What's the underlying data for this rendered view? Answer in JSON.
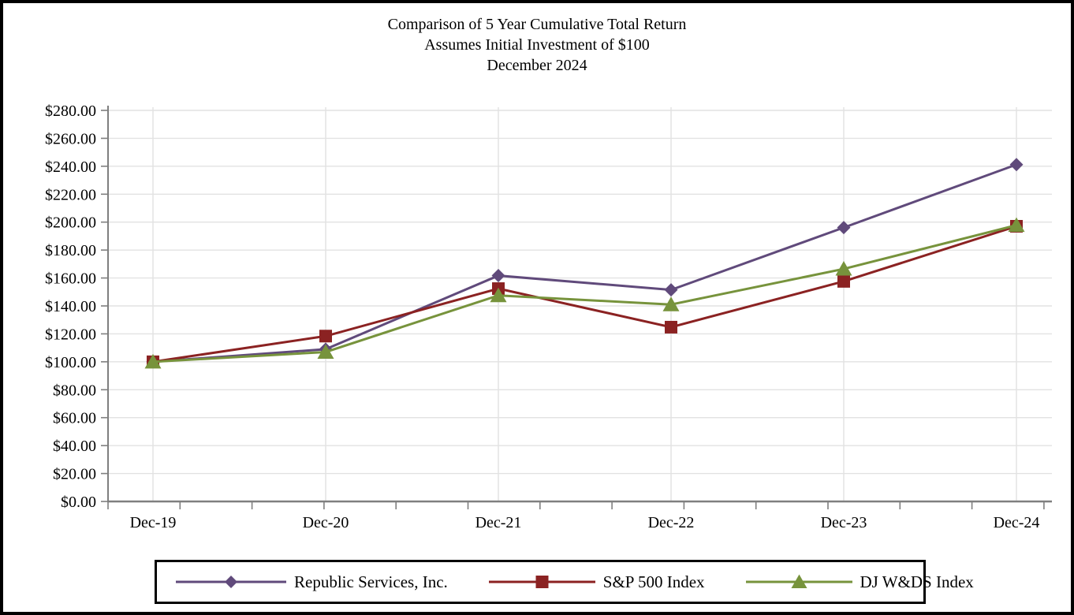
{
  "chart_data": {
    "type": "line",
    "title": "Comparison of 5 Year Cumulative Total Return",
    "subtitle1": "Assumes Initial Investment of $100",
    "subtitle2": "December 2024",
    "categories": [
      "Dec-19",
      "Dec-20",
      "Dec-21",
      "Dec-22",
      "Dec-23",
      "Dec-24"
    ],
    "series": [
      {
        "name": "Republic Services, Inc.",
        "marker": "diamond",
        "color": "#604a7b",
        "values": [
          100.0,
          109.0,
          161.7,
          151.5,
          196.1,
          241.2
        ]
      },
      {
        "name": "S&P 500 Index",
        "marker": "square",
        "color": "#8b2222",
        "values": [
          100.0,
          118.4,
          152.39,
          124.79,
          157.59,
          197.02
        ]
      },
      {
        "name": "DJ W&DS Index",
        "marker": "triangle",
        "color": "#77933c",
        "values": [
          100.0,
          107.0,
          147.5,
          141.0,
          166.5,
          197.8
        ]
      }
    ],
    "ylim": [
      0,
      280
    ],
    "ytick_step": 20,
    "ytick_prefix": "$",
    "ytick_decimals": 2,
    "grid": true,
    "legend_position": "bottom"
  },
  "colors": {
    "gridline": "#e2e2e2",
    "axis": "#7f7f7f",
    "tick": "#7f7f7f",
    "text": "#000000",
    "frame_border": "#000000"
  }
}
